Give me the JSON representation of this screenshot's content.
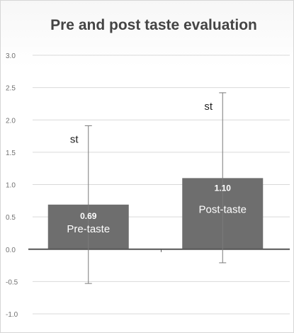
{
  "chart_data": {
    "type": "bar",
    "title": "Pre and post taste evaluation",
    "xlabel": "",
    "ylabel": "",
    "ylim": [
      -1.0,
      3.0
    ],
    "yticks": [
      "3.0",
      "2.5",
      "2.0",
      "1.5",
      "1.0",
      "0.5",
      "0.0",
      "-0.5",
      "-1.0"
    ],
    "grid": true,
    "categories": [
      "Pre-taste",
      "Post-taste"
    ],
    "values": [
      0.69,
      1.1
    ],
    "value_labels": [
      "0.69",
      "1.10"
    ],
    "error_bars": [
      {
        "low": -0.53,
        "high": 1.91
      },
      {
        "low": -0.21,
        "high": 2.42
      }
    ],
    "annotations": [
      "st",
      "st"
    ],
    "bar_color": "#6e6e6e",
    "error_color": "#7a7a7a",
    "grid_color": "#d9d9d9",
    "axis_color": "#555555"
  }
}
